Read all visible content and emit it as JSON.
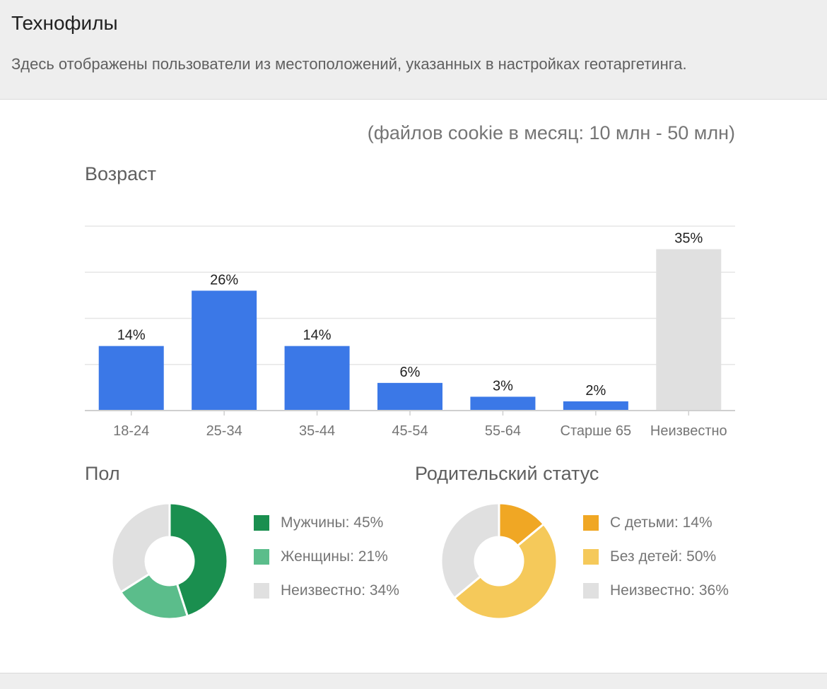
{
  "header": {
    "title": "Технофилы",
    "subtitle": "Здесь отображены пользователи из местоположений, указанных в настройках геотаргетинга."
  },
  "cookie_range": "(файлов cookie в месяц: 10 млн - 50 млн)",
  "sections": {
    "age": "Возраст",
    "gender": "Пол",
    "parental": "Родительский статус"
  },
  "colors": {
    "bar_blue": "#3b78e7",
    "bar_unknown": "#e0e0e0",
    "male": "#1a8f4f",
    "female": "#5bbd8b",
    "with_kids": "#f0a724",
    "no_kids": "#f5c95a",
    "unknown": "#e0e0e0"
  },
  "chart_data": [
    {
      "type": "bar",
      "title": "Возраст",
      "categories": [
        "18-24",
        "25-34",
        "35-44",
        "45-54",
        "55-64",
        "Старше 65",
        "Неизвестно"
      ],
      "values": [
        14,
        26,
        14,
        6,
        3,
        2,
        35
      ],
      "labels": [
        "14%",
        "26%",
        "14%",
        "6%",
        "3%",
        "2%",
        "35%"
      ],
      "colors": [
        "#3b78e7",
        "#3b78e7",
        "#3b78e7",
        "#3b78e7",
        "#3b78e7",
        "#3b78e7",
        "#e0e0e0"
      ],
      "ylim": [
        0,
        40
      ],
      "grid": true
    },
    {
      "type": "pie",
      "title": "Пол",
      "slices": [
        {
          "label": "Мужчины: 45%",
          "value": 45,
          "color": "#1a8f4f"
        },
        {
          "label": "Женщины: 21%",
          "value": 21,
          "color": "#5bbd8b"
        },
        {
          "label": "Неизвестно: 34%",
          "value": 34,
          "color": "#e0e0e0"
        }
      ],
      "donut": true,
      "legend": "right"
    },
    {
      "type": "pie",
      "title": "Родительский статус",
      "slices": [
        {
          "label": "С детьми: 14%",
          "value": 14,
          "color": "#f0a724"
        },
        {
          "label": "Без детей: 50%",
          "value": 50,
          "color": "#f5c95a"
        },
        {
          "label": "Неизвестно: 36%",
          "value": 36,
          "color": "#e0e0e0"
        }
      ],
      "donut": true,
      "legend": "right"
    }
  ]
}
